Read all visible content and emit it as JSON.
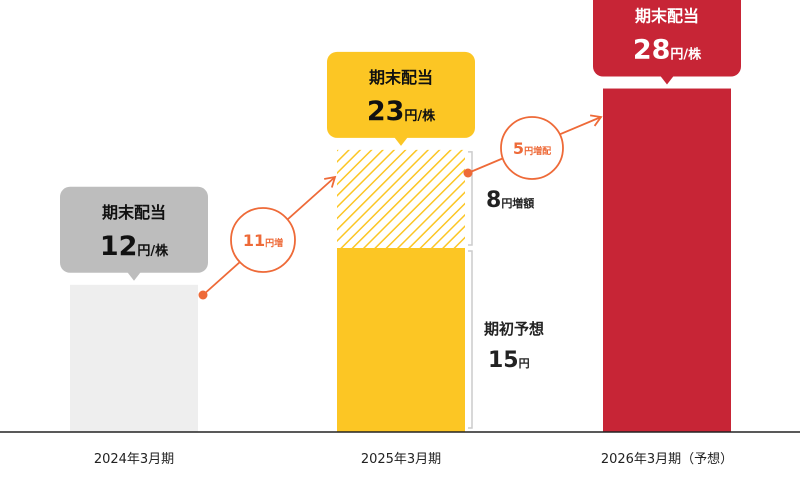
{
  "colors": {
    "bar_2024": "#eeeeee",
    "bar_2025": "#fcc624",
    "bar_2026": "#c72536",
    "bubble_2024": "#bdbdbd",
    "bubble_2025": "#fcc624",
    "bubble_2026": "#c72536",
    "arrow": "#ee6a38",
    "baseline": "#222222",
    "bracket": "#cccccc"
  },
  "chart_data": {
    "type": "bar",
    "categories": [
      "2024年3月期",
      "2025年3月期",
      "2026年3月期（予想）"
    ],
    "values": [
      12,
      23,
      28
    ],
    "series": [
      {
        "name": "期初予想",
        "values": [
          12,
          15,
          28
        ]
      },
      {
        "name": "増額",
        "values": [
          0,
          8,
          0
        ]
      }
    ],
    "ylim": [
      0,
      30
    ],
    "unit": "円/株",
    "bubbles": [
      {
        "title": "期末配当",
        "value": "12",
        "unit": "円/株"
      },
      {
        "title": "期末配当",
        "value": "23",
        "unit": "円/株"
      },
      {
        "title": "期末配当",
        "value": "28",
        "unit": "円/株"
      }
    ],
    "increases": [
      {
        "value": "11",
        "unit": "円増"
      },
      {
        "value": "5",
        "unit": "円増配"
      }
    ],
    "annotations": {
      "increase": {
        "value": "8",
        "unit": "円増額"
      },
      "initial": {
        "title": "期初予想",
        "value": "15",
        "unit": "円"
      }
    }
  }
}
